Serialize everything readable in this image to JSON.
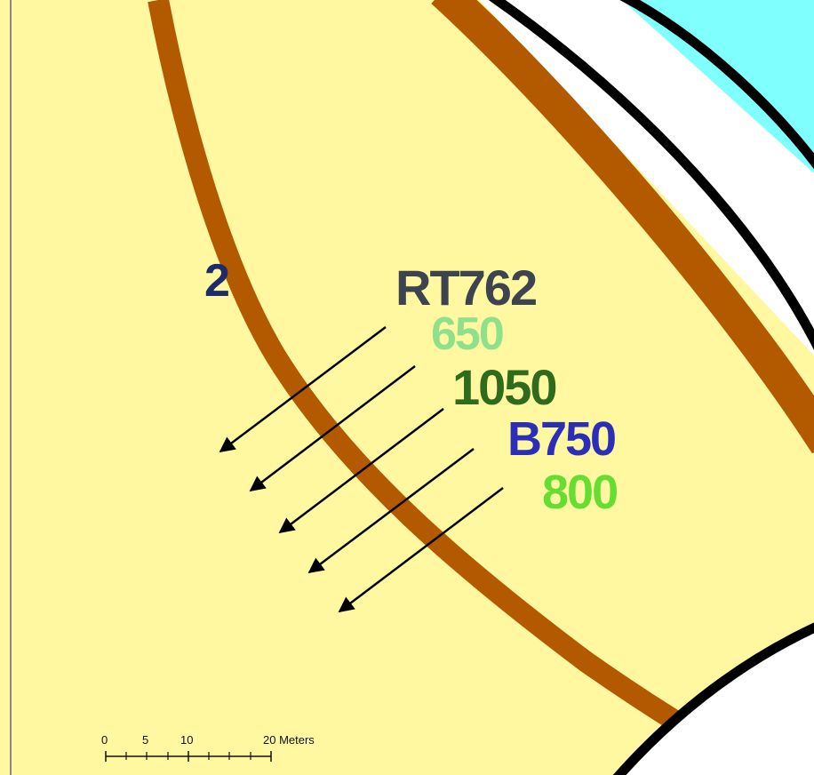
{
  "map": {
    "colors": {
      "land": "#FFF8A0",
      "brown_line": "#B35A00",
      "water": "#80FFFF",
      "road_edge": "#000000",
      "road_fill": "#FFFFFF",
      "arrow": "#000000"
    },
    "labels": {
      "segment_id": {
        "text": "2",
        "color": "#1F2A6B"
      },
      "route": {
        "text": "RT762",
        "color": "#3D4450"
      },
      "series": [
        {
          "text": "650",
          "color": "#8FE08A"
        },
        {
          "text": "1050",
          "color": "#2E6B1C"
        },
        {
          "text": "B750",
          "color": "#2B2FB8"
        },
        {
          "text": "800",
          "color": "#66DD33"
        }
      ]
    },
    "arrow_count": 5,
    "scale_bar": {
      "ticks": [
        "0",
        "5",
        "10",
        "20 Meters"
      ]
    }
  }
}
